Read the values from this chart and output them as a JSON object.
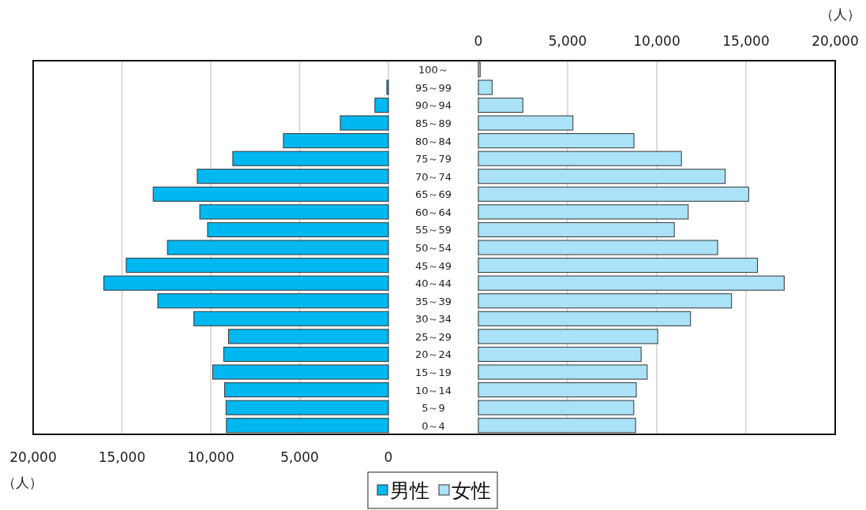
{
  "chart_data": [
    {
      "type": "bar",
      "orientation": "horizontal",
      "categories": [
        "100～",
        "95～99",
        "90～94",
        "85～89",
        "80～84",
        "75～79",
        "70～74",
        "65～69",
        "60～64",
        "55～59",
        "50～54",
        "45～49",
        "40～44",
        "35～39",
        "30～34",
        "25～29",
        "20～24",
        "15～19",
        "10～14",
        "5～9",
        "0～4"
      ],
      "series": [
        {
          "name": "男性",
          "color": "#00b8f0",
          "values": [
            0,
            90,
            760,
            2710,
            5910,
            8760,
            10760,
            13240,
            10620,
            10180,
            12440,
            14760,
            16020,
            12980,
            10950,
            9000,
            9270,
            9890,
            9220,
            9140,
            9120
          ]
        }
      ],
      "xlim": [
        20000,
        0
      ],
      "xticks": [
        {
          "value": 20000,
          "label": "20,000"
        },
        {
          "value": 15000,
          "label": "15,000"
        },
        {
          "value": 10000,
          "label": "10,000"
        },
        {
          "value": 5000,
          "label": "5,000"
        },
        0
      ],
      "xlabel": "（人）",
      "grid": "x",
      "legend": "bottom"
    },
    {
      "type": "bar",
      "orientation": "horizontal",
      "categories": [
        null,
        null,
        null,
        null,
        null,
        null,
        null,
        null,
        null,
        null,
        null,
        null,
        null,
        null,
        null,
        null,
        null,
        null,
        null,
        null,
        null
      ],
      "series": [
        {
          "name": "女性",
          "color": "#aae2f8",
          "axis": "x2",
          "values": [
            100,
            770,
            2490,
            5300,
            8720,
            11380,
            13830,
            15150,
            11760,
            10980,
            13410,
            15640,
            17140,
            14190,
            11890,
            10050,
            9120,
            9460,
            8850,
            8710,
            8810
          ]
        }
      ],
      "x2lim": [
        0,
        20000
      ],
      "x2ticks": [
        0,
        {
          "value": 5000,
          "label": "5,000"
        },
        {
          "value": 10000,
          "label": "10,000"
        },
        {
          "value": 15000,
          "label": "15,000"
        },
        {
          "value": 20000,
          "label": "20,000"
        }
      ],
      "x2label": "（人）",
      "grid": "x",
      "legend": "bottom"
    }
  ]
}
